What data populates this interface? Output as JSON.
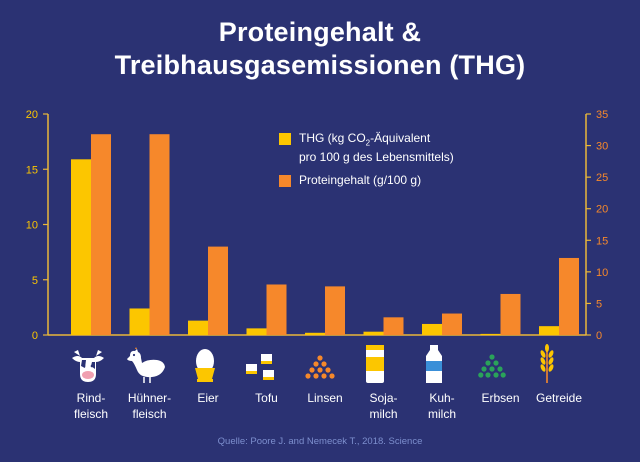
{
  "title": {
    "line1": "Proteingehalt &",
    "line2": "Treibhausgasemissionen (THG)"
  },
  "legend": {
    "thg_line1_a": "THG (kg CO",
    "thg_line1_sub": "2",
    "thg_line1_b": "-Äquivalent",
    "thg_line2": "pro 100 g des Lebensmittels)",
    "protein": "Proteingehalt (g/100 g)"
  },
  "colors": {
    "background": "#2b3273",
    "thg": "#fcc600",
    "protein": "#f6882b",
    "axis": "#e9b73a",
    "source": "#7d8fce"
  },
  "categories": [
    {
      "label": "Rind-\nfleisch",
      "icon": "cow-icon"
    },
    {
      "label": "Hühner-\nfleisch",
      "icon": "chicken-icon"
    },
    {
      "label": "Eier",
      "icon": "egg-icon"
    },
    {
      "label": "Tofu",
      "icon": "tofu-icon"
    },
    {
      "label": "Linsen",
      "icon": "lentils-icon"
    },
    {
      "label": "Soja-\nmilch",
      "icon": "soy-milk-icon"
    },
    {
      "label": "Kuh-\nmilch",
      "icon": "cow-milk-icon"
    },
    {
      "label": "Erbsen",
      "icon": "peas-icon"
    },
    {
      "label": "Getreide",
      "icon": "grain-icon"
    }
  ],
  "chart_data": {
    "type": "bar",
    "title": "Proteingehalt & Treibhausgasemissionen (THG)",
    "categories": [
      "Rindfleisch",
      "Hühnerfleisch",
      "Eier",
      "Tofu",
      "Linsen",
      "Sojamilch",
      "Kuhmilch",
      "Erbsen",
      "Getreide"
    ],
    "series": [
      {
        "name": "THG (kg CO2-Äquivalent pro 100 g des Lebensmittels)",
        "axis": "left",
        "values": [
          15.9,
          2.4,
          1.3,
          0.6,
          0.2,
          0.3,
          1.0,
          0.1,
          0.8
        ]
      },
      {
        "name": "Proteingehalt (g/100 g)",
        "axis": "right",
        "values": [
          31.8,
          31.8,
          14.0,
          8.0,
          7.7,
          2.8,
          3.4,
          6.5,
          12.2
        ]
      }
    ],
    "y_left": {
      "min": 0,
      "max": 20,
      "ticks": [
        0,
        5,
        10,
        15,
        20
      ]
    },
    "y_right": {
      "min": 0,
      "max": 35,
      "ticks": [
        0,
        5,
        10,
        15,
        20,
        25,
        30,
        35
      ]
    },
    "grid": false,
    "legend_position": "top-center"
  },
  "source": "Quelle: Poore J. and Nemecek T., 2018. Science"
}
